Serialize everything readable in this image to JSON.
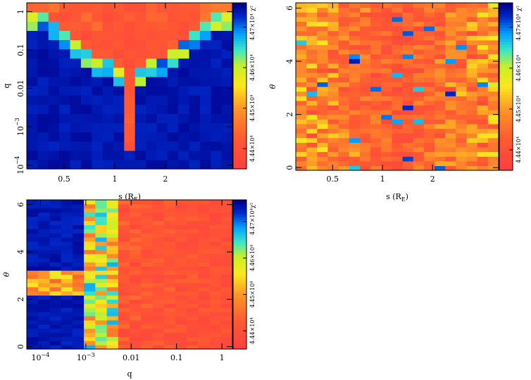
{
  "chart_data": [
    {
      "type": "heatmap",
      "title": "",
      "xlabel": "s (R_E)",
      "ylabel": "q",
      "x_scale": "log",
      "y_scale": "log",
      "xlim": [
        0.3,
        5.0
      ],
      "ylim": [
        8e-05,
        1.7
      ],
      "nx": 19,
      "ny": 18,
      "x_ticks": [
        {
          "value": 0.5,
          "label": "0.5"
        },
        {
          "value": 1,
          "label": "1"
        },
        {
          "value": 2,
          "label": "2"
        }
      ],
      "y_ticks": [
        {
          "value": 0.0001,
          "label": "10",
          "sup": "−4"
        },
        {
          "value": 0.001,
          "label": "10",
          "sup": "−3"
        },
        {
          "value": 0.01,
          "label": "0.01"
        },
        {
          "value": 0.1,
          "label": "0.1"
        },
        {
          "value": 1,
          "label": "1"
        }
      ],
      "pattern": "q_vs_s",
      "colorbar": {
        "label": "χ²",
        "ticks": [
          "4.44×10⁴",
          "4.45×10⁴",
          "4.46×10⁴",
          "4.47×10⁴"
        ],
        "range": [
          44350,
          44760
        ]
      }
    },
    {
      "type": "heatmap",
      "title": "",
      "xlabel": "s (R_E)",
      "ylabel": "θ",
      "x_scale": "log",
      "y_scale": "linear",
      "xlim": [
        0.3,
        5.0
      ],
      "ylim": [
        -0.1,
        6.2
      ],
      "nx": 19,
      "ny": 36,
      "x_ticks": [
        {
          "value": 0.5,
          "label": "0.5"
        },
        {
          "value": 1,
          "label": "1"
        },
        {
          "value": 2,
          "label": "2"
        }
      ],
      "y_ticks": [
        {
          "value": 0,
          "label": "0"
        },
        {
          "value": 2,
          "label": "2"
        },
        {
          "value": 4,
          "label": "4"
        },
        {
          "value": 6,
          "label": "6"
        }
      ],
      "pattern": "theta_vs_s",
      "colorbar": {
        "label": "χ²",
        "ticks": [
          "4.44×10⁴",
          "4.45×10⁴",
          "4.46×10⁴",
          "4.47×10⁴"
        ],
        "range": [
          44350,
          44760
        ]
      }
    },
    {
      "type": "heatmap",
      "title": "",
      "xlabel": "q",
      "ylabel": "θ",
      "x_scale": "log",
      "y_scale": "linear",
      "xlim": [
        5e-05,
        1.7
      ],
      "ylim": [
        -0.1,
        6.2
      ],
      "nx": 18,
      "ny": 36,
      "x_ticks": [
        {
          "value": 0.0001,
          "label": "10",
          "sup": "−4"
        },
        {
          "value": 0.001,
          "label": "10",
          "sup": "−3"
        },
        {
          "value": 0.01,
          "label": "0.01"
        },
        {
          "value": 0.1,
          "label": "0.1"
        },
        {
          "value": 1,
          "label": "1"
        }
      ],
      "y_ticks": [
        {
          "value": 0,
          "label": "0"
        },
        {
          "value": 2,
          "label": "2"
        },
        {
          "value": 4,
          "label": "4"
        },
        {
          "value": 6,
          "label": "6"
        }
      ],
      "pattern": "theta_vs_q",
      "colorbar": {
        "label": "χ²",
        "ticks": [
          "4.44×10⁴",
          "4.45×10⁴",
          "4.46×10⁴",
          "4.47×10⁴"
        ],
        "range": [
          44350,
          44760
        ]
      }
    }
  ]
}
